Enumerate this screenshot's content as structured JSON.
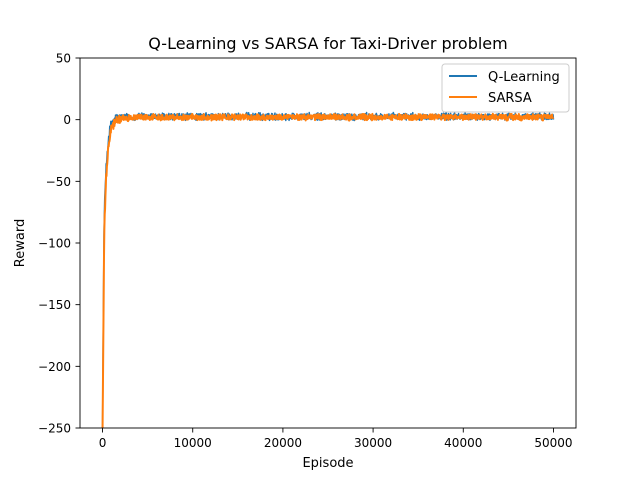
{
  "chart_data": {
    "type": "line",
    "title": "Q-Learning vs SARSA for Taxi-Driver problem",
    "xlabel": "Episode",
    "ylabel": "Reward",
    "xlim": [
      -2500,
      52500
    ],
    "ylim": [
      -250,
      50
    ],
    "xticks": [
      0,
      10000,
      20000,
      30000,
      40000,
      50000
    ],
    "yticks": [
      -250,
      -200,
      -150,
      -100,
      -50,
      0,
      50
    ],
    "xtick_labels": [
      "0",
      "10000",
      "20000",
      "30000",
      "40000",
      "50000"
    ],
    "ytick_labels": [
      "−250",
      "−200",
      "−150",
      "−100",
      "−50",
      "0",
      "50"
    ],
    "grid": false,
    "legend_position": "top-right",
    "series": [
      {
        "name": "Q-Learning",
        "color": "#1f77b4",
        "x": [
          0,
          50,
          100,
          150,
          200,
          300,
          400,
          500,
          600,
          700,
          800,
          900,
          1000,
          1200,
          1400,
          1600,
          1800,
          2000,
          2500,
          3000,
          4000,
          5000,
          7500,
          10000,
          15000,
          20000,
          25000,
          30000,
          35000,
          40000,
          45000,
          50000
        ],
        "values": [
          -250,
          -200,
          -150,
          -100,
          -75,
          -55,
          -40,
          -28,
          -20,
          -14,
          -9,
          -6,
          -3,
          -1,
          0,
          1,
          1.5,
          2,
          2,
          2,
          2.5,
          2.5,
          2.5,
          2.5,
          2.5,
          2.5,
          2.5,
          2.5,
          2.5,
          2.5,
          2.5,
          2.5
        ],
        "noise": 2.6
      },
      {
        "name": "SARSA",
        "color": "#ff7f0e",
        "x": [
          0,
          50,
          100,
          150,
          200,
          300,
          400,
          500,
          600,
          700,
          800,
          900,
          1000,
          1200,
          1400,
          1600,
          1800,
          2000,
          2500,
          3000,
          4000,
          5000,
          7500,
          10000,
          15000,
          20000,
          25000,
          30000,
          35000,
          40000,
          45000,
          50000
        ],
        "values": [
          -250,
          -210,
          -165,
          -120,
          -90,
          -65,
          -48,
          -36,
          -27,
          -20,
          -14,
          -10,
          -7,
          -4,
          -2,
          -1,
          0,
          0.5,
          1,
          1.5,
          2,
          2,
          2,
          2,
          2,
          2,
          2,
          2,
          2,
          2,
          2,
          2
        ],
        "noise": 2.2
      }
    ]
  }
}
